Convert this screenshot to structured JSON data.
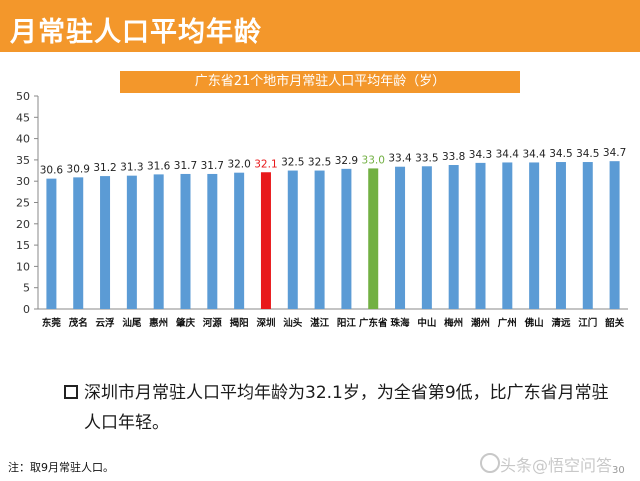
{
  "header": {
    "title": "月常驻人口平均年龄"
  },
  "note": {
    "text": "深圳市月常驻人口平均年龄为32.1岁，为全省第9低，比广东省月常驻人口年轻。"
  },
  "footnote": "注：取9月常驻人口。",
  "watermark": "头条@悟空问答",
  "page_number": "30",
  "colors": {
    "header": "#f3972b",
    "bar_default": "#5b9bd5",
    "bar_highlight": "#e8191b",
    "bar_province": "#72b043"
  },
  "chart_data": {
    "type": "bar",
    "title": "广东省21个地市月常驻人口平均年龄（岁）",
    "categories": [
      "东莞",
      "茂名",
      "云浮",
      "汕尾",
      "惠州",
      "肇庆",
      "河源",
      "揭阳",
      "深圳",
      "汕头",
      "湛江",
      "阳江",
      "广东省",
      "珠海",
      "中山",
      "梅州",
      "潮州",
      "广州",
      "佛山",
      "清远",
      "江门",
      "韶关"
    ],
    "values": [
      30.6,
      30.9,
      31.2,
      31.3,
      31.6,
      31.7,
      31.7,
      32.0,
      32.1,
      32.5,
      32.5,
      32.9,
      33.0,
      33.4,
      33.5,
      33.8,
      34.3,
      34.4,
      34.4,
      34.5,
      34.5,
      34.7
    ],
    "value_labels": [
      "30.6",
      "30.9",
      "31.2",
      "31.3",
      "31.6",
      "31.7",
      "31.7",
      "32.0",
      "32.1",
      "32.5",
      "32.5",
      "32.9",
      "33.0",
      "33.4",
      "33.5",
      "33.8",
      "34.3",
      "34.4",
      "34.4",
      "34.5",
      "34.5",
      "34.7"
    ],
    "highlight": {
      "深圳": "#e8191b",
      "广东省": "#72b043"
    },
    "ylim": [
      0,
      50
    ],
    "yticks": [
      0,
      5,
      10,
      15,
      20,
      25,
      30,
      35,
      40,
      45,
      50
    ],
    "ytick_labels": [
      "0",
      "5",
      "10",
      "15",
      "20",
      "25",
      "30",
      "35",
      "40",
      "45",
      "50"
    ],
    "grid": false,
    "legend": "none"
  }
}
